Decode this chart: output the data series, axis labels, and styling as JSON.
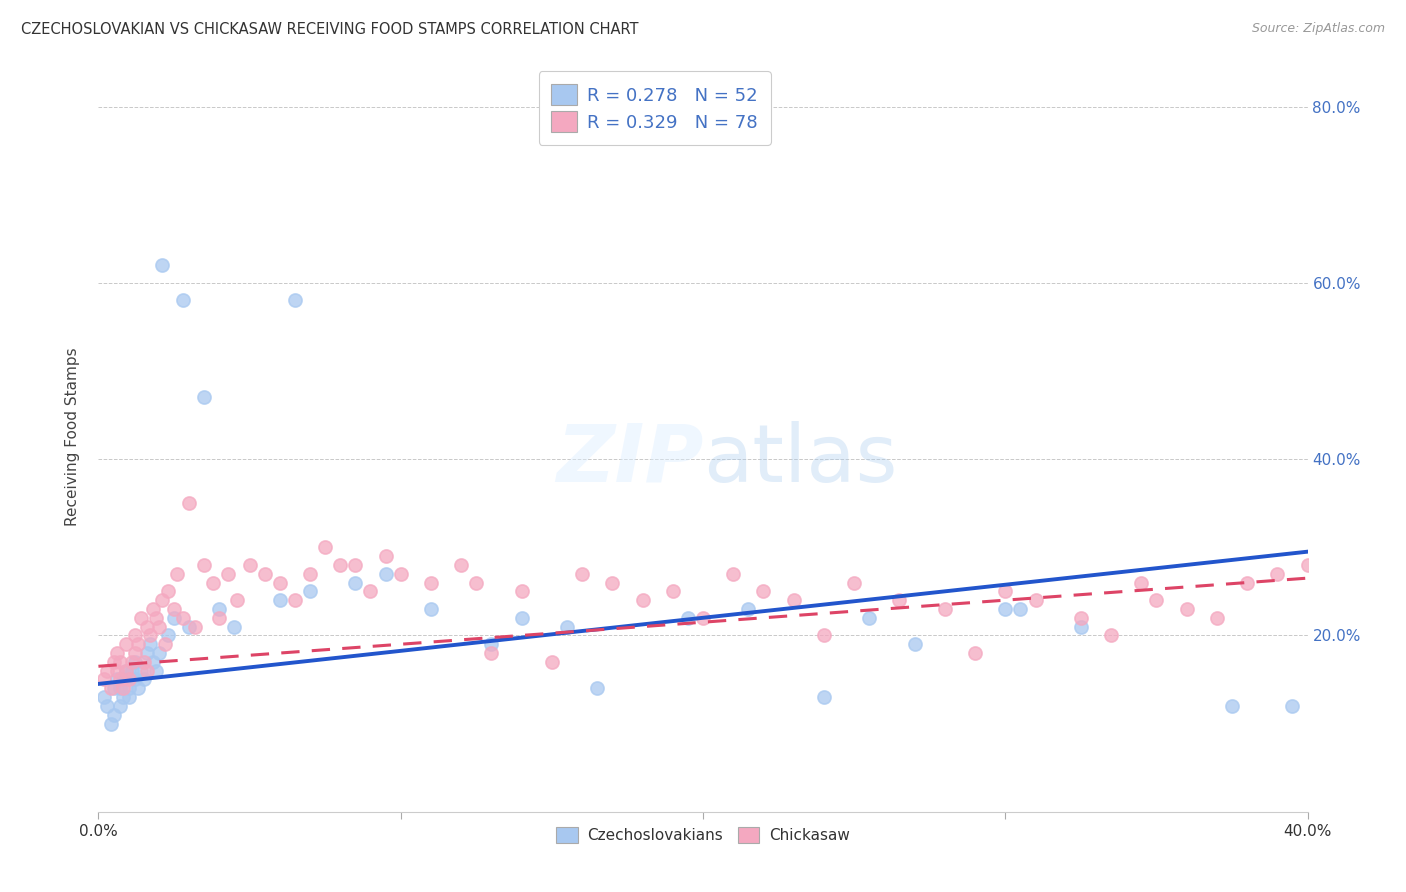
{
  "title": "CZECHOSLOVAKIAN VS CHICKASAW RECEIVING FOOD STAMPS CORRELATION CHART",
  "source": "Source: ZipAtlas.com",
  "ylabel": "Receiving Food Stamps",
  "xlim": [
    0.0,
    0.4
  ],
  "ylim": [
    0.0,
    0.85
  ],
  "xticks": [
    0.0,
    0.1,
    0.2,
    0.3,
    0.4
  ],
  "xticklabels": [
    "0.0%",
    "",
    "",
    "",
    "40.0%"
  ],
  "yticks_right": [
    0.2,
    0.4,
    0.6,
    0.8
  ],
  "yticklabels_right": [
    "20.0%",
    "40.0%",
    "60.0%",
    "80.0%"
  ],
  "blue_R": 0.278,
  "blue_N": 52,
  "pink_R": 0.329,
  "pink_N": 78,
  "blue_color": "#A8C8F0",
  "pink_color": "#F4A8C0",
  "blue_line_color": "#2255CC",
  "pink_line_color": "#DD4466",
  "background_color": "#FFFFFF",
  "grid_color": "#BBBBBB",
  "blue_x": [
    0.002,
    0.003,
    0.004,
    0.005,
    0.005,
    0.006,
    0.007,
    0.007,
    0.008,
    0.008,
    0.009,
    0.01,
    0.01,
    0.011,
    0.012,
    0.012,
    0.013,
    0.014,
    0.015,
    0.016,
    0.017,
    0.018,
    0.019,
    0.02,
    0.021,
    0.023,
    0.025,
    0.028,
    0.03,
    0.035,
    0.04,
    0.045,
    0.06,
    0.065,
    0.07,
    0.085,
    0.095,
    0.11,
    0.13,
    0.14,
    0.155,
    0.165,
    0.195,
    0.215,
    0.24,
    0.255,
    0.27,
    0.3,
    0.305,
    0.325,
    0.375,
    0.395
  ],
  "blue_y": [
    0.13,
    0.12,
    0.1,
    0.11,
    0.14,
    0.15,
    0.12,
    0.14,
    0.13,
    0.15,
    0.16,
    0.14,
    0.13,
    0.16,
    0.15,
    0.17,
    0.14,
    0.16,
    0.15,
    0.18,
    0.19,
    0.17,
    0.16,
    0.18,
    0.62,
    0.2,
    0.22,
    0.58,
    0.21,
    0.47,
    0.23,
    0.21,
    0.24,
    0.58,
    0.25,
    0.26,
    0.27,
    0.23,
    0.19,
    0.22,
    0.21,
    0.14,
    0.22,
    0.23,
    0.13,
    0.22,
    0.19,
    0.23,
    0.23,
    0.21,
    0.12,
    0.12
  ],
  "pink_x": [
    0.002,
    0.003,
    0.004,
    0.005,
    0.006,
    0.006,
    0.007,
    0.007,
    0.008,
    0.009,
    0.009,
    0.01,
    0.011,
    0.012,
    0.012,
    0.013,
    0.014,
    0.015,
    0.016,
    0.016,
    0.017,
    0.018,
    0.019,
    0.02,
    0.021,
    0.022,
    0.023,
    0.025,
    0.026,
    0.028,
    0.03,
    0.032,
    0.035,
    0.038,
    0.04,
    0.043,
    0.046,
    0.05,
    0.055,
    0.06,
    0.065,
    0.07,
    0.075,
    0.08,
    0.085,
    0.09,
    0.095,
    0.1,
    0.11,
    0.12,
    0.125,
    0.13,
    0.14,
    0.15,
    0.16,
    0.17,
    0.18,
    0.19,
    0.2,
    0.21,
    0.22,
    0.23,
    0.24,
    0.25,
    0.265,
    0.28,
    0.29,
    0.3,
    0.31,
    0.325,
    0.335,
    0.345,
    0.35,
    0.36,
    0.37,
    0.38,
    0.39,
    0.4
  ],
  "pink_y": [
    0.15,
    0.16,
    0.14,
    0.17,
    0.16,
    0.18,
    0.15,
    0.17,
    0.14,
    0.16,
    0.19,
    0.15,
    0.17,
    0.18,
    0.2,
    0.19,
    0.22,
    0.17,
    0.21,
    0.16,
    0.2,
    0.23,
    0.22,
    0.21,
    0.24,
    0.19,
    0.25,
    0.23,
    0.27,
    0.22,
    0.35,
    0.21,
    0.28,
    0.26,
    0.22,
    0.27,
    0.24,
    0.28,
    0.27,
    0.26,
    0.24,
    0.27,
    0.3,
    0.28,
    0.28,
    0.25,
    0.29,
    0.27,
    0.26,
    0.28,
    0.26,
    0.18,
    0.25,
    0.17,
    0.27,
    0.26,
    0.24,
    0.25,
    0.22,
    0.27,
    0.25,
    0.24,
    0.2,
    0.26,
    0.24,
    0.23,
    0.18,
    0.25,
    0.24,
    0.22,
    0.2,
    0.26,
    0.24,
    0.23,
    0.22,
    0.26,
    0.27,
    0.28
  ]
}
